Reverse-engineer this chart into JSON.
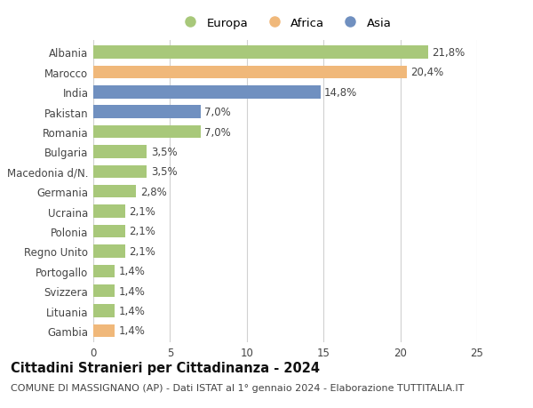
{
  "categories": [
    "Albania",
    "Marocco",
    "India",
    "Pakistan",
    "Romania",
    "Bulgaria",
    "Macedonia d/N.",
    "Germania",
    "Ucraina",
    "Polonia",
    "Regno Unito",
    "Portogallo",
    "Svizzera",
    "Lituania",
    "Gambia"
  ],
  "values": [
    21.8,
    20.4,
    14.8,
    7.0,
    7.0,
    3.5,
    3.5,
    2.8,
    2.1,
    2.1,
    2.1,
    1.4,
    1.4,
    1.4,
    1.4
  ],
  "labels": [
    "21,8%",
    "20,4%",
    "14,8%",
    "7,0%",
    "7,0%",
    "3,5%",
    "3,5%",
    "2,8%",
    "2,1%",
    "2,1%",
    "2,1%",
    "1,4%",
    "1,4%",
    "1,4%",
    "1,4%"
  ],
  "continents": [
    "Europa",
    "Africa",
    "Asia",
    "Asia",
    "Europa",
    "Europa",
    "Europa",
    "Europa",
    "Europa",
    "Europa",
    "Europa",
    "Europa",
    "Europa",
    "Europa",
    "Africa"
  ],
  "colors": {
    "Europa": "#a8c87a",
    "Africa": "#f0b87a",
    "Asia": "#7090c0"
  },
  "xlim": [
    0,
    25
  ],
  "xticks": [
    0,
    5,
    10,
    15,
    20,
    25
  ],
  "title": "Cittadini Stranieri per Cittadinanza - 2024",
  "subtitle": "COMUNE DI MASSIGNANO (AP) - Dati ISTAT al 1° gennaio 2024 - Elaborazione TUTTITALIA.IT",
  "background_color": "#ffffff",
  "grid_color": "#d0d0d0",
  "bar_height": 0.65,
  "title_fontsize": 10.5,
  "subtitle_fontsize": 8,
  "tick_fontsize": 8.5,
  "label_fontsize": 8.5,
  "legend_fontsize": 9.5
}
